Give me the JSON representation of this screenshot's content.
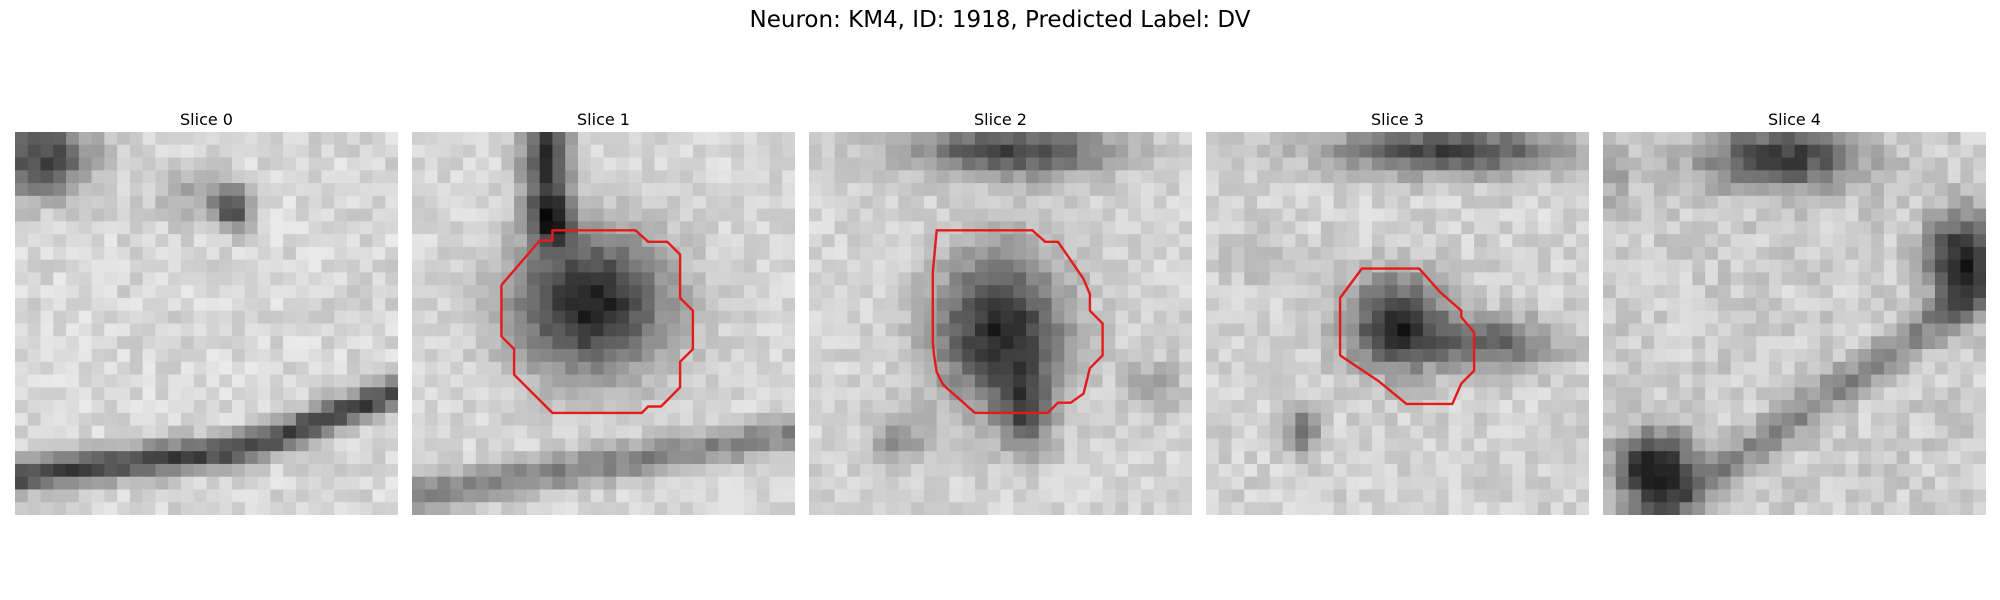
{
  "figure": {
    "title": "Neuron: KM4, ID: 1918, Predicted Label: DV"
  },
  "slices": [
    {
      "label": "Slice 0"
    },
    {
      "label": "Slice 1"
    },
    {
      "label": "Slice 2"
    },
    {
      "label": "Slice 3"
    },
    {
      "label": "Slice 4"
    }
  ],
  "colors": {
    "contour": "#e41a1c",
    "background": "#ffffff"
  }
}
